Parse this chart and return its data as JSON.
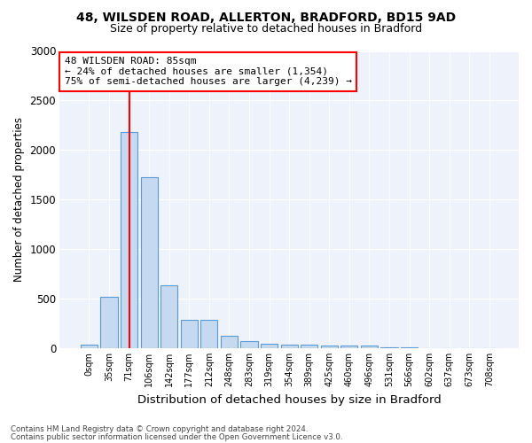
{
  "title_line1": "48, WILSDEN ROAD, ALLERTON, BRADFORD, BD15 9AD",
  "title_line2": "Size of property relative to detached houses in Bradford",
  "xlabel": "Distribution of detached houses by size in Bradford",
  "ylabel": "Number of detached properties",
  "categories": [
    "0sqm",
    "35sqm",
    "71sqm",
    "106sqm",
    "142sqm",
    "177sqm",
    "212sqm",
    "248sqm",
    "283sqm",
    "319sqm",
    "354sqm",
    "389sqm",
    "425sqm",
    "460sqm",
    "496sqm",
    "531sqm",
    "566sqm",
    "602sqm",
    "637sqm",
    "673sqm",
    "708sqm"
  ],
  "bar_heights": [
    30,
    520,
    2185,
    1720,
    635,
    285,
    285,
    120,
    70,
    40,
    35,
    30,
    25,
    20,
    25,
    5,
    5,
    0,
    0,
    0,
    0
  ],
  "bar_color": "#c5d9f0",
  "bar_edge_color": "#5b9bd5",
  "ylim": [
    0,
    3000
  ],
  "yticks": [
    0,
    500,
    1000,
    1500,
    2000,
    2500,
    3000
  ],
  "red_line_x": 2,
  "annotation_text": "48 WILSDEN ROAD: 85sqm\n← 24% of detached houses are smaller (1,354)\n75% of semi-detached houses are larger (4,239) →",
  "footer_line1": "Contains HM Land Registry data © Crown copyright and database right 2024.",
  "footer_line2": "Contains public sector information licensed under the Open Government Licence v3.0.",
  "background_color": "#ffffff",
  "plot_bg_color": "#eef2fb"
}
